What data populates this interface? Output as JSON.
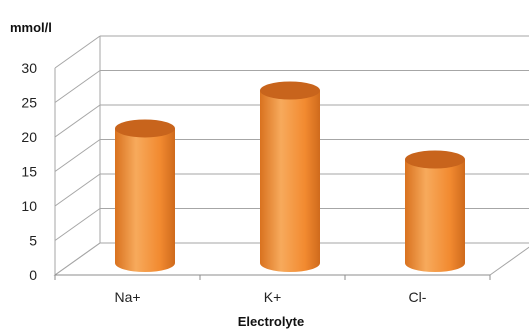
{
  "chart_data": {
    "type": "bar",
    "style": "3d-cylinder",
    "categories": [
      "Na+",
      "K+",
      "Cl-"
    ],
    "series": [
      {
        "values": [
          19.5,
          25,
          15
        ]
      }
    ],
    "xlabel": "Electrolyte",
    "ylabel": "mmol/l",
    "ylim": [
      0,
      30
    ],
    "yticks": [
      0,
      5,
      10,
      15,
      20,
      25,
      30
    ],
    "grid": true,
    "legend": "none",
    "colors": {
      "bar_body": "#f28a30",
      "bar_highlight": "#f7aa5c",
      "bar_top": "#c8641c",
      "grid": "#a6a6a6",
      "axis": "#8c8c8c"
    }
  }
}
